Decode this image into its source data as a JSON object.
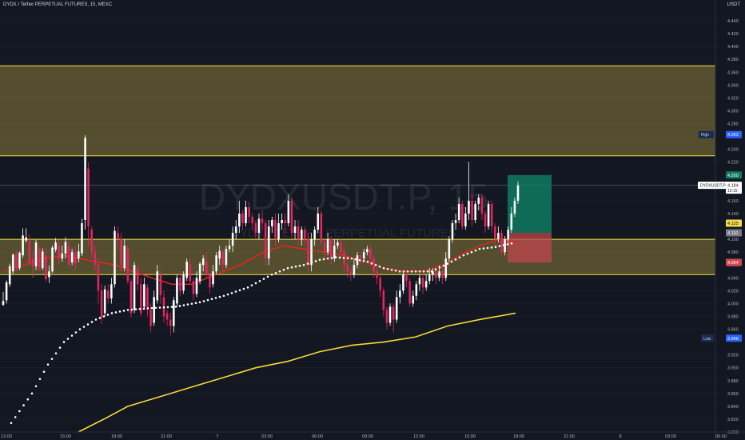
{
  "header": {
    "title": "DYDX / Tether PERPETUAL FUTURES, 15, MEXC",
    "currency": "USDT"
  },
  "watermark": {
    "symbol": "DYDXUSDT.P, 15",
    "subtitle": "DYDX / TETHER PERPETUAL FUTURES"
  },
  "chart_data": {
    "type": "candlestick",
    "ylim": [
      3.8,
      4.46
    ],
    "price_ticks": [
      "4.440",
      "4.420",
      "4.400",
      "4.380",
      "4.360",
      "4.340",
      "4.320",
      "4.300",
      "4.280",
      "4.260",
      "4.240",
      "4.220",
      "4.180",
      "4.160",
      "4.140",
      "4.100",
      "4.080",
      "4.060",
      "4.040",
      "4.020",
      "4.000",
      "3.980",
      "3.960",
      "3.920",
      "3.900",
      "3.880",
      "3.860",
      "3.840",
      "3.820",
      "3.800"
    ],
    "time_ticks": [
      {
        "label": "12:00",
        "x": 8
      },
      {
        "label": "15:00",
        "x": 82
      },
      {
        "label": "18:00",
        "x": 146
      },
      {
        "label": "21:00",
        "x": 208
      },
      {
        "label": "7",
        "x": 272
      },
      {
        "label": "03:00",
        "x": 334
      },
      {
        "label": "06:00",
        "x": 397
      },
      {
        "label": "09:00",
        "x": 460
      },
      {
        "label": "12:00",
        "x": 524
      },
      {
        "label": "15:00",
        "x": 588
      },
      {
        "label": "18:00",
        "x": 649
      },
      {
        "label": "21:00",
        "x": 712
      },
      {
        "label": "8",
        "x": 776
      },
      {
        "label": "03:00",
        "x": 839
      },
      {
        "label": "06:00",
        "x": 902
      }
    ],
    "colors": {
      "up": "#ffffff",
      "down": "#e8245f",
      "zone_fill": "#6b6233",
      "zone_border": "#f0e040",
      "ema": "#f02020",
      "dots": "#ffffff",
      "long_ma": "#f4d73a",
      "target": "#0f7a5e",
      "stop": "#c0474e"
    },
    "zones": [
      {
        "top": 4.37,
        "bottom": 4.23
      },
      {
        "top": 4.1,
        "bottom": 4.045
      }
    ],
    "candles": [
      [
        3.998,
        4.004,
        4.018,
        3.996
      ],
      [
        4.005,
        4.033,
        4.036,
        4.0
      ],
      [
        4.03,
        4.058,
        4.062,
        4.026
      ],
      [
        4.05,
        4.076,
        4.078,
        4.046
      ],
      [
        4.078,
        4.055,
        4.083,
        4.05
      ],
      [
        4.055,
        4.079,
        4.081,
        4.052
      ],
      [
        4.075,
        4.106,
        4.117,
        4.071
      ],
      [
        4.098,
        4.103,
        4.117,
        4.095
      ],
      [
        4.098,
        4.064,
        4.108,
        4.06
      ],
      [
        4.07,
        4.059,
        4.08,
        4.04
      ],
      [
        4.058,
        4.095,
        4.099,
        4.052
      ],
      [
        4.086,
        4.055,
        4.09,
        4.05
      ],
      [
        4.055,
        4.081,
        4.086,
        4.052
      ],
      [
        4.075,
        4.038,
        4.088,
        4.034
      ],
      [
        4.041,
        4.05,
        4.059,
        4.032
      ],
      [
        4.05,
        4.087,
        4.09,
        4.048
      ],
      [
        4.084,
        4.095,
        4.102,
        4.08
      ],
      [
        4.09,
        4.07,
        4.1,
        4.06
      ],
      [
        4.07,
        4.078,
        4.09,
        4.065
      ],
      [
        4.078,
        4.096,
        4.103,
        4.07
      ],
      [
        4.09,
        4.061,
        4.097,
        4.056
      ],
      [
        4.064,
        4.08,
        4.085,
        4.06
      ],
      [
        4.078,
        4.062,
        4.088,
        4.052
      ],
      [
        4.07,
        4.081,
        4.093,
        4.064
      ],
      [
        4.078,
        4.125,
        4.132,
        4.074
      ],
      [
        4.13,
        4.258,
        4.262,
        4.115
      ],
      [
        4.21,
        4.12,
        4.22,
        4.09
      ],
      [
        4.115,
        4.08,
        4.12,
        4.07
      ],
      [
        4.08,
        4.06,
        4.09,
        4.05
      ],
      [
        4.06,
        4.02,
        4.07,
        4.0
      ],
      [
        4.02,
        3.978,
        4.03,
        3.968
      ],
      [
        3.985,
        4.022,
        4.028,
        3.98
      ],
      [
        4.02,
        4.008,
        4.03,
        4.0
      ],
      [
        4.008,
        4.03,
        4.04,
        4.0
      ],
      [
        4.03,
        4.113,
        4.12,
        4.025
      ],
      [
        4.11,
        4.1,
        4.12,
        4.085
      ],
      [
        4.1,
        4.06,
        4.11,
        4.05
      ],
      [
        4.055,
        4.09,
        4.1,
        4.05
      ],
      [
        4.085,
        4.035,
        4.09,
        4.03
      ],
      [
        4.035,
        3.985,
        4.04,
        3.978
      ],
      [
        3.99,
        4.06,
        4.065,
        3.985
      ],
      [
        4.055,
        4.03,
        4.06,
        4.02
      ],
      [
        4.03,
        3.985,
        4.04,
        3.98
      ],
      [
        3.995,
        4.03,
        4.04,
        3.99
      ],
      [
        4.025,
        3.99,
        4.03,
        3.98
      ],
      [
        3.99,
        3.965,
        4.0,
        3.955
      ],
      [
        3.97,
        4.01,
        4.02,
        3.965
      ],
      [
        4.005,
        4.05,
        4.06,
        4.0
      ],
      [
        4.045,
        4.013,
        4.05,
        4.0
      ],
      [
        4.01,
        3.98,
        4.02,
        3.97
      ],
      [
        3.985,
        3.975,
        3.99,
        3.965
      ],
      [
        3.975,
        3.965,
        3.985,
        3.95
      ],
      [
        3.965,
        4.005,
        4.01,
        3.955
      ],
      [
        4.0,
        4.04,
        4.045,
        3.995
      ],
      [
        4.04,
        4.02,
        4.05,
        4.012
      ],
      [
        4.02,
        4.045,
        4.05,
        4.015
      ],
      [
        4.04,
        4.065,
        4.07,
        4.035
      ],
      [
        4.06,
        4.035,
        4.07,
        4.03
      ],
      [
        4.035,
        4.015,
        4.04,
        4.005
      ],
      [
        4.015,
        4.04,
        4.05,
        4.01
      ],
      [
        4.035,
        4.062,
        4.065,
        4.03
      ],
      [
        4.06,
        4.07,
        4.075,
        4.05
      ],
      [
        4.065,
        4.045,
        4.08,
        4.04
      ],
      [
        4.045,
        4.025,
        4.05,
        4.015
      ],
      [
        4.03,
        4.05,
        4.06,
        4.025
      ],
      [
        4.05,
        4.075,
        4.08,
        4.045
      ],
      [
        4.07,
        4.082,
        4.09,
        4.06
      ],
      [
        4.08,
        4.06,
        4.085,
        4.05
      ],
      [
        4.06,
        4.085,
        4.09,
        4.055
      ],
      [
        4.085,
        4.09,
        4.1,
        4.08
      ],
      [
        4.09,
        4.11,
        4.12,
        4.08
      ],
      [
        4.11,
        4.12,
        4.13,
        4.1
      ],
      [
        4.12,
        4.14,
        4.16,
        4.11
      ],
      [
        4.14,
        4.125,
        4.145,
        4.115
      ],
      [
        4.125,
        4.15,
        4.16,
        4.12
      ],
      [
        4.15,
        4.135,
        4.158,
        4.125
      ],
      [
        4.135,
        4.125,
        4.14,
        4.115
      ],
      [
        4.125,
        4.11,
        4.13,
        4.1
      ],
      [
        4.11,
        4.132,
        4.14,
        4.1
      ],
      [
        4.132,
        4.125,
        4.145,
        4.115
      ],
      [
        4.125,
        4.07,
        4.13,
        4.06
      ],
      [
        4.07,
        4.12,
        4.13,
        4.06
      ],
      [
        4.12,
        4.13,
        4.135,
        4.11
      ],
      [
        4.13,
        4.1,
        4.14,
        4.09
      ],
      [
        4.1,
        4.125,
        4.14,
        4.095
      ],
      [
        4.125,
        4.13,
        4.14,
        4.115
      ],
      [
        4.13,
        4.125,
        4.14,
        4.11
      ],
      [
        4.125,
        4.16,
        4.17,
        4.12
      ],
      [
        4.16,
        4.11,
        4.165,
        4.1
      ],
      [
        4.11,
        4.12,
        4.13,
        4.1
      ],
      [
        4.12,
        4.1,
        4.13,
        4.09
      ],
      [
        4.1,
        4.115,
        4.12,
        4.09
      ],
      [
        4.115,
        4.1,
        4.12,
        4.09
      ],
      [
        4.1,
        4.06,
        4.11,
        4.05
      ],
      [
        4.06,
        4.1,
        4.11,
        4.05
      ],
      [
        4.1,
        4.115,
        4.12,
        4.09
      ],
      [
        4.115,
        4.14,
        4.15,
        4.11
      ],
      [
        4.14,
        4.095,
        4.145,
        4.09
      ],
      [
        4.095,
        4.08,
        4.1,
        4.07
      ],
      [
        4.08,
        4.1,
        4.11,
        4.075
      ],
      [
        4.1,
        4.07,
        4.105,
        4.06
      ],
      [
        4.07,
        4.09,
        4.1,
        4.065
      ],
      [
        4.09,
        4.095,
        4.1,
        4.085
      ],
      [
        4.095,
        4.08,
        4.1,
        4.07
      ],
      [
        4.08,
        4.06,
        4.09,
        4.05
      ],
      [
        4.06,
        4.05,
        4.065,
        4.04
      ],
      [
        4.05,
        4.045,
        4.055,
        4.035
      ],
      [
        4.045,
        4.06,
        4.07,
        4.04
      ],
      [
        4.06,
        4.075,
        4.08,
        4.055
      ],
      [
        4.075,
        4.07,
        4.08,
        4.06
      ],
      [
        4.07,
        4.08,
        4.085,
        4.065
      ],
      [
        4.08,
        4.085,
        4.09,
        4.075
      ],
      [
        4.085,
        4.07,
        4.09,
        4.06
      ],
      [
        4.07,
        4.05,
        4.075,
        4.04
      ],
      [
        4.05,
        4.04,
        4.055,
        4.03
      ],
      [
        4.04,
        4.02,
        4.045,
        4.01
      ],
      [
        4.02,
        3.99,
        4.025,
        3.98
      ],
      [
        3.99,
        3.97,
        3.995,
        3.96
      ],
      [
        3.97,
        3.995,
        4.0,
        3.965
      ],
      [
        3.995,
        3.975,
        4.0,
        3.955
      ],
      [
        3.975,
        4.01,
        4.02,
        3.97
      ],
      [
        4.01,
        4.02,
        4.03,
        4.0
      ],
      [
        4.02,
        4.045,
        4.05,
        4.015
      ],
      [
        4.045,
        4.035,
        4.05,
        4.025
      ],
      [
        4.035,
        4.0,
        4.04,
        3.995
      ],
      [
        4.0,
        4.012,
        4.02,
        3.995
      ],
      [
        4.012,
        4.03,
        4.035,
        4.005
      ],
      [
        4.03,
        4.04,
        4.045,
        4.02
      ],
      [
        4.04,
        4.025,
        4.05,
        4.015
      ],
      [
        4.025,
        4.035,
        4.045,
        4.02
      ],
      [
        4.035,
        4.045,
        4.055,
        4.03
      ],
      [
        4.045,
        4.05,
        4.055,
        4.035
      ],
      [
        4.05,
        4.04,
        4.06,
        4.03
      ],
      [
        4.04,
        4.05,
        4.06,
        4.035
      ],
      [
        4.05,
        4.04,
        4.06,
        4.03
      ],
      [
        4.04,
        4.07,
        4.08,
        4.035
      ],
      [
        4.07,
        4.1,
        4.105,
        4.065
      ],
      [
        4.1,
        4.125,
        4.13,
        4.095
      ],
      [
        4.125,
        4.13,
        4.14,
        4.115
      ],
      [
        4.13,
        4.155,
        4.165,
        4.125
      ],
      [
        4.155,
        4.12,
        4.16,
        4.115
      ],
      [
        4.12,
        4.14,
        4.15,
        4.115
      ],
      [
        4.14,
        4.16,
        4.22,
        4.13
      ],
      [
        4.16,
        4.13,
        4.17,
        4.12
      ],
      [
        4.13,
        4.155,
        4.16,
        4.125
      ],
      [
        4.155,
        4.165,
        4.17,
        4.145
      ],
      [
        4.165,
        4.14,
        4.17,
        4.13
      ],
      [
        4.14,
        4.12,
        4.145,
        4.11
      ],
      [
        4.12,
        4.155,
        4.16,
        4.115
      ],
      [
        4.155,
        4.12,
        4.16,
        4.11
      ],
      [
        4.12,
        4.1,
        4.125,
        4.09
      ],
      [
        4.1,
        4.11,
        4.12,
        4.095
      ],
      [
        4.11,
        4.08,
        4.115,
        4.075
      ],
      [
        4.08,
        4.1,
        4.105,
        4.075
      ],
      [
        4.1,
        4.115,
        4.12,
        4.095
      ],
      [
        4.115,
        4.14,
        4.15,
        4.11
      ],
      [
        4.14,
        4.16,
        4.165,
        4.135
      ],
      [
        4.16,
        4.184,
        4.19,
        4.155
      ]
    ],
    "ema": [
      [
        4,
        4.05
      ],
      [
        30,
        4.06
      ],
      [
        55,
        4.07
      ],
      [
        80,
        4.075
      ],
      [
        100,
        4.07
      ],
      [
        120,
        4.065
      ],
      [
        145,
        4.06
      ],
      [
        165,
        4.05
      ],
      [
        190,
        4.04
      ],
      [
        215,
        4.03
      ],
      [
        240,
        4.03
      ],
      [
        270,
        4.045
      ],
      [
        300,
        4.06
      ],
      [
        330,
        4.08
      ],
      [
        355,
        4.09
      ],
      [
        380,
        4.085
      ],
      [
        405,
        4.08
      ],
      [
        430,
        4.075
      ],
      [
        455,
        4.065
      ],
      [
        480,
        4.055
      ],
      [
        505,
        4.05
      ],
      [
        530,
        4.05
      ],
      [
        555,
        4.06
      ],
      [
        575,
        4.075
      ],
      [
        600,
        4.09
      ],
      [
        625,
        4.1
      ],
      [
        645,
        4.095
      ]
    ],
    "dots": [
      [
        14,
        3.814
      ],
      [
        40,
        3.86
      ],
      [
        60,
        3.905
      ],
      [
        80,
        3.94
      ],
      [
        100,
        3.96
      ],
      [
        120,
        3.975
      ],
      [
        140,
        3.985
      ],
      [
        160,
        3.99
      ],
      [
        190,
        3.993
      ],
      [
        220,
        3.995
      ],
      [
        250,
        4.002
      ],
      [
        280,
        4.012
      ],
      [
        310,
        4.025
      ],
      [
        340,
        4.045
      ],
      [
        360,
        4.055
      ],
      [
        380,
        4.06
      ],
      [
        400,
        4.068
      ],
      [
        420,
        4.072
      ],
      [
        440,
        4.07
      ],
      [
        460,
        4.065
      ],
      [
        480,
        4.055
      ],
      [
        500,
        4.05
      ],
      [
        520,
        4.05
      ],
      [
        540,
        4.05
      ],
      [
        560,
        4.062
      ],
      [
        580,
        4.075
      ],
      [
        600,
        4.085
      ],
      [
        620,
        4.088
      ],
      [
        645,
        4.095
      ]
    ],
    "long_ma": [
      [
        98,
        3.8
      ],
      [
        130,
        3.82
      ],
      [
        160,
        3.84
      ],
      [
        200,
        3.855
      ],
      [
        240,
        3.87
      ],
      [
        280,
        3.885
      ],
      [
        320,
        3.9
      ],
      [
        360,
        3.91
      ],
      [
        400,
        3.925
      ],
      [
        440,
        3.935
      ],
      [
        480,
        3.94
      ],
      [
        520,
        3.948
      ],
      [
        560,
        3.965
      ],
      [
        600,
        3.975
      ],
      [
        645,
        3.985
      ]
    ],
    "position": {
      "entry": 4.11,
      "target": 4.2,
      "stop": 4.064
    },
    "price_tags": [
      {
        "label": "High",
        "value": "4.263",
        "price": 4.263,
        "bg": "#2962ff",
        "fg": "#ffffff"
      },
      {
        "label": "",
        "value": "4.200",
        "price": 4.2,
        "bg": "#0f7a5e",
        "fg": "#ffffff"
      },
      {
        "label": "DYDXUSDT.P",
        "value": "4.184",
        "price": 4.184,
        "bg": "#ffffff",
        "fg": "#131722",
        "sub": "10:15"
      },
      {
        "label": "",
        "value": "4.125",
        "price": 4.125,
        "bg": "#f5d94a",
        "fg": "#131722"
      },
      {
        "label": "",
        "value": "4.110",
        "price": 4.11,
        "bg": "#787b86",
        "fg": "#ffffff"
      },
      {
        "label": "",
        "value": "4.064",
        "price": 4.064,
        "bg": "#d0494f",
        "fg": "#ffffff"
      },
      {
        "label": "Low",
        "value": "3.946",
        "price": 3.946,
        "bg": "#2962ff",
        "fg": "#ffffff"
      }
    ]
  }
}
